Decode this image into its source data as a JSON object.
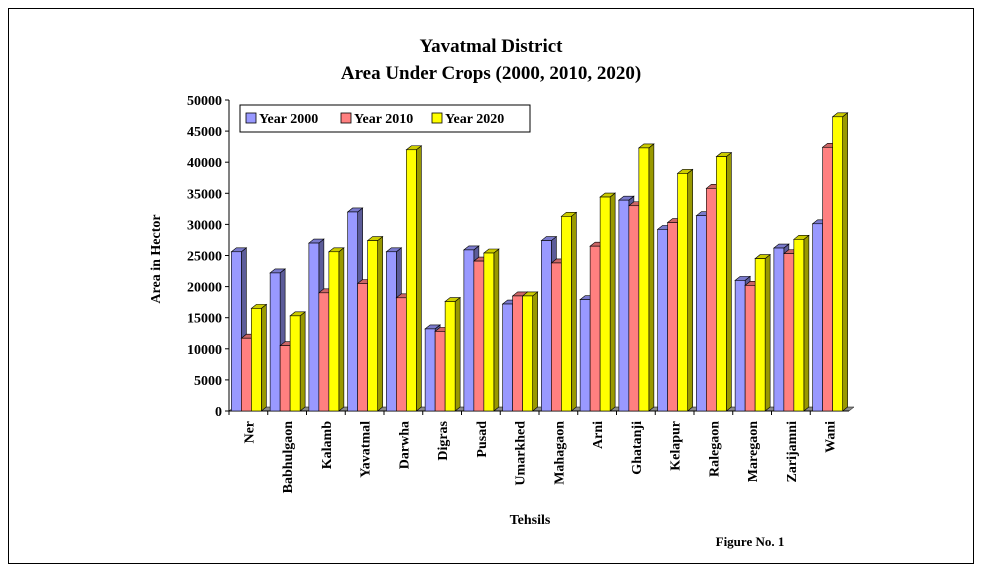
{
  "figure_label": "Figure No. 1",
  "chart_data": {
    "type": "bar",
    "title": "Yavatmal District",
    "subtitle": "Area Under Crops (2000, 2010, 2020)",
    "xlabel": "Tehsils",
    "ylabel": "Area in Hector",
    "ylim": [
      0,
      50000
    ],
    "yticks": [
      0,
      5000,
      10000,
      15000,
      20000,
      25000,
      30000,
      35000,
      40000,
      45000,
      50000
    ],
    "grid": false,
    "legend_position": "top-left",
    "categories": [
      "Ner",
      "Babhulgaon",
      "Kalamb",
      "Yavatmal",
      "Darwha",
      "Digras",
      "Pusad",
      "Umarkhed",
      "Mahagaon",
      "Arni",
      "Ghatanji",
      "Kelapur",
      "Ralegaon",
      "Maregaon",
      "Zarijamni",
      "Wani"
    ],
    "series": [
      {
        "name": "Year 2000",
        "color": "#9999ff",
        "values": [
          25600,
          22200,
          27000,
          32000,
          25600,
          13200,
          25900,
          17200,
          27400,
          17900,
          33900,
          29200,
          31400,
          21000,
          26200,
          30100
        ]
      },
      {
        "name": "Year 2010",
        "color": "#ff8080",
        "values": [
          11700,
          10500,
          19000,
          20500,
          18200,
          12800,
          24100,
          18500,
          23800,
          26500,
          33000,
          30300,
          35800,
          20200,
          25300,
          42400
        ]
      },
      {
        "name": "Year 2020",
        "color": "#ffff00",
        "values": [
          16500,
          15300,
          25600,
          27400,
          42000,
          17600,
          25400,
          18500,
          31300,
          34400,
          42300,
          38200,
          40900,
          24500,
          27600,
          47300
        ]
      }
    ]
  }
}
